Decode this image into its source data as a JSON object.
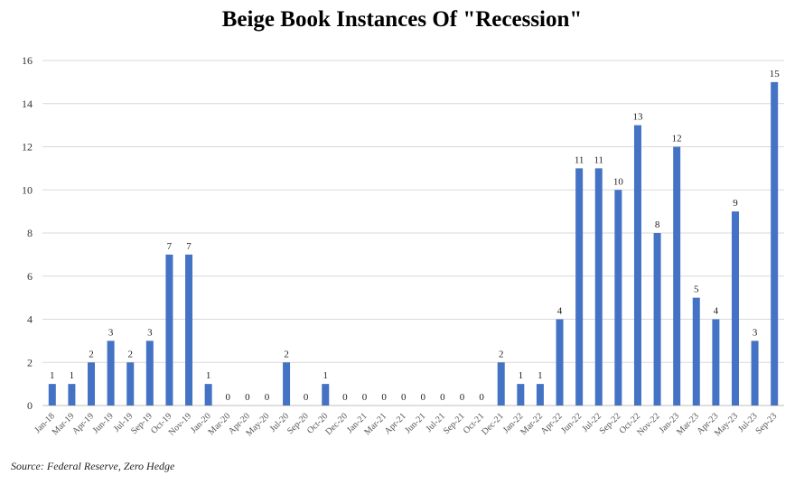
{
  "chart_data": {
    "type": "bar",
    "title": "Beige Book Instances Of  \"Recession\"",
    "xlabel": "",
    "ylabel": "",
    "ylim": [
      0,
      16
    ],
    "yticks": [
      0,
      2,
      4,
      6,
      8,
      10,
      12,
      14,
      16
    ],
    "grid": true,
    "legend": "none",
    "bar_color": "#4472c4",
    "categories": [
      "Jan-18",
      "Mar-19",
      "Apr-19",
      "Jun-19",
      "Jul-19",
      "Sep-19",
      "Oct-19",
      "Nov-19",
      "Jan-20",
      "Mar-20",
      "Apr-20",
      "May-20",
      "Jul-20",
      "Sep-20",
      "Oct-20",
      "Dec-20",
      "Jan-21",
      "Mar-21",
      "Apr-21",
      "Jun-21",
      "Jul-21",
      "Sep-21",
      "Oct-21",
      "Dec-21",
      "Jan-22",
      "Mar-22",
      "Apr-22",
      "Jun-22",
      "Jul-22",
      "Sep-22",
      "Oct-22",
      "Nov-22",
      "Jan-23",
      "Mar-23",
      "Apr-23",
      "May-23",
      "Jul-23",
      "Sep-23"
    ],
    "values": [
      1,
      1,
      2,
      3,
      2,
      3,
      7,
      7,
      1,
      0,
      0,
      0,
      2,
      0,
      1,
      0,
      0,
      0,
      0,
      0,
      0,
      0,
      0,
      2,
      1,
      1,
      4,
      11,
      11,
      10,
      13,
      8,
      12,
      5,
      4,
      9,
      3,
      15
    ]
  },
  "source": "Source: Federal Reserve, Zero Hedge"
}
